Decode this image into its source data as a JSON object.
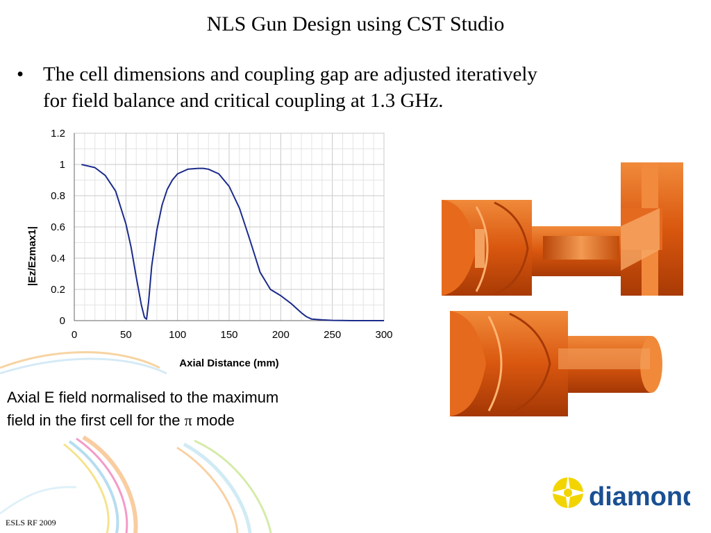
{
  "slide": {
    "title": "NLS Gun Design using CST Studio",
    "bullet_marker": "•",
    "bullet_line1": "The cell dimensions and coupling gap are adjusted iteratively",
    "bullet_line2": "for field balance and critical coupling at 1.3 GHz.",
    "caption_line1": "Axial E field normalised to the maximum",
    "caption_line2_prefix": "field in the first cell for the ",
    "caption_symbol": "π",
    "caption_line2_suffix": " mode",
    "footer": "ESLS RF 2009",
    "logo_text": "diamond"
  },
  "colors": {
    "line": "#1a2a8a",
    "copper": "#d9570f",
    "logo_blue": "#1a4f93",
    "logo_yellow": "#f2d500"
  },
  "chart_data": {
    "type": "line",
    "xlabel": "Axial Distance (mm)",
    "ylabel": "|Ez/Ezmax1|",
    "xlim": [
      0,
      300
    ],
    "ylim": [
      0,
      1.2
    ],
    "xticks": [
      "0",
      "50",
      "100",
      "150",
      "200",
      "250",
      "300"
    ],
    "yticks": [
      "0",
      "0.2",
      "0.4",
      "0.6",
      "0.8",
      "1",
      "1.2"
    ],
    "grid": true,
    "series": [
      {
        "x": [
          7,
          20,
          30,
          40,
          50,
          55,
          60,
          65,
          68,
          70,
          72,
          75,
          80,
          85,
          90,
          95,
          100,
          110,
          120,
          125,
          130,
          140,
          150,
          160,
          170,
          180,
          190,
          200,
          210,
          215,
          220,
          225,
          230,
          240,
          250,
          270,
          300
        ],
        "y": [
          1.0,
          0.98,
          0.93,
          0.83,
          0.62,
          0.47,
          0.28,
          0.1,
          0.02,
          0.01,
          0.12,
          0.35,
          0.58,
          0.74,
          0.84,
          0.9,
          0.94,
          0.97,
          0.975,
          0.975,
          0.97,
          0.94,
          0.86,
          0.72,
          0.52,
          0.31,
          0.2,
          0.16,
          0.11,
          0.08,
          0.05,
          0.025,
          0.01,
          0.005,
          0.002,
          0.0,
          0.0
        ]
      }
    ]
  }
}
